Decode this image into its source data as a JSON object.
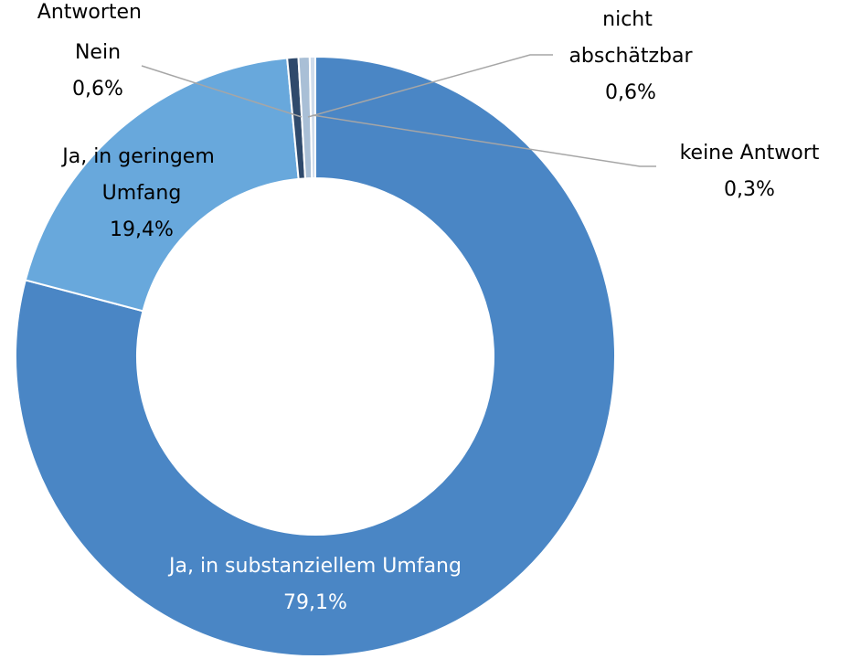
{
  "chart_data": {
    "type": "donut",
    "title": "Antworten",
    "categories": [
      "Ja, in substanziellem Umfang",
      "Ja, in geringem Umfang",
      "Nein",
      "nicht abschätzbar",
      "keine Antwort"
    ],
    "values": [
      79.1,
      19.4,
      0.6,
      0.6,
      0.3
    ],
    "value_labels": [
      "79,1%",
      "19,4%",
      "0,6%",
      "0,6%",
      "0,3%"
    ],
    "colors": [
      "#4a86c5",
      "#68a8dc",
      "#2f4a6c",
      "#a9bfd6",
      "#cfdcec"
    ]
  }
}
